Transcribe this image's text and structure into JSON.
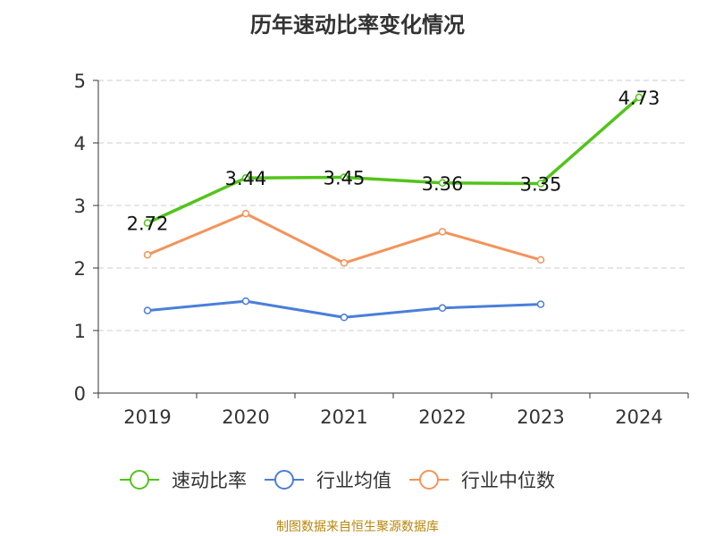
{
  "title": "历年速动比率变化情况",
  "source": "制图数据来自恒生聚源数据库",
  "chart_data": {
    "type": "line",
    "title": "历年速动比率变化情况",
    "xlabel": "",
    "ylabel": "",
    "categories": [
      "2019",
      "2020",
      "2021",
      "2022",
      "2023",
      "2024"
    ],
    "ylim": [
      0,
      5
    ],
    "yticks": [
      "0",
      "1",
      "2",
      "3",
      "4",
      "5"
    ],
    "grid": true,
    "legend_position": "bottom",
    "series": [
      {
        "name": "速动比率",
        "values": [
          2.72,
          3.44,
          3.45,
          3.36,
          3.35,
          4.73
        ],
        "labels": [
          "2.72",
          "3.44",
          "3.45",
          "3.36",
          "3.35",
          "4.73"
        ],
        "color": "#52c41a",
        "show_labels": true
      },
      {
        "name": "行业均值",
        "values": [
          1.32,
          1.47,
          1.21,
          1.36,
          1.42,
          null
        ],
        "color": "#4a7fd8",
        "show_labels": false
      },
      {
        "name": "行业中位数",
        "values": [
          2.21,
          2.87,
          2.08,
          2.58,
          2.13,
          null
        ],
        "color": "#f4935a",
        "show_labels": false
      }
    ]
  }
}
